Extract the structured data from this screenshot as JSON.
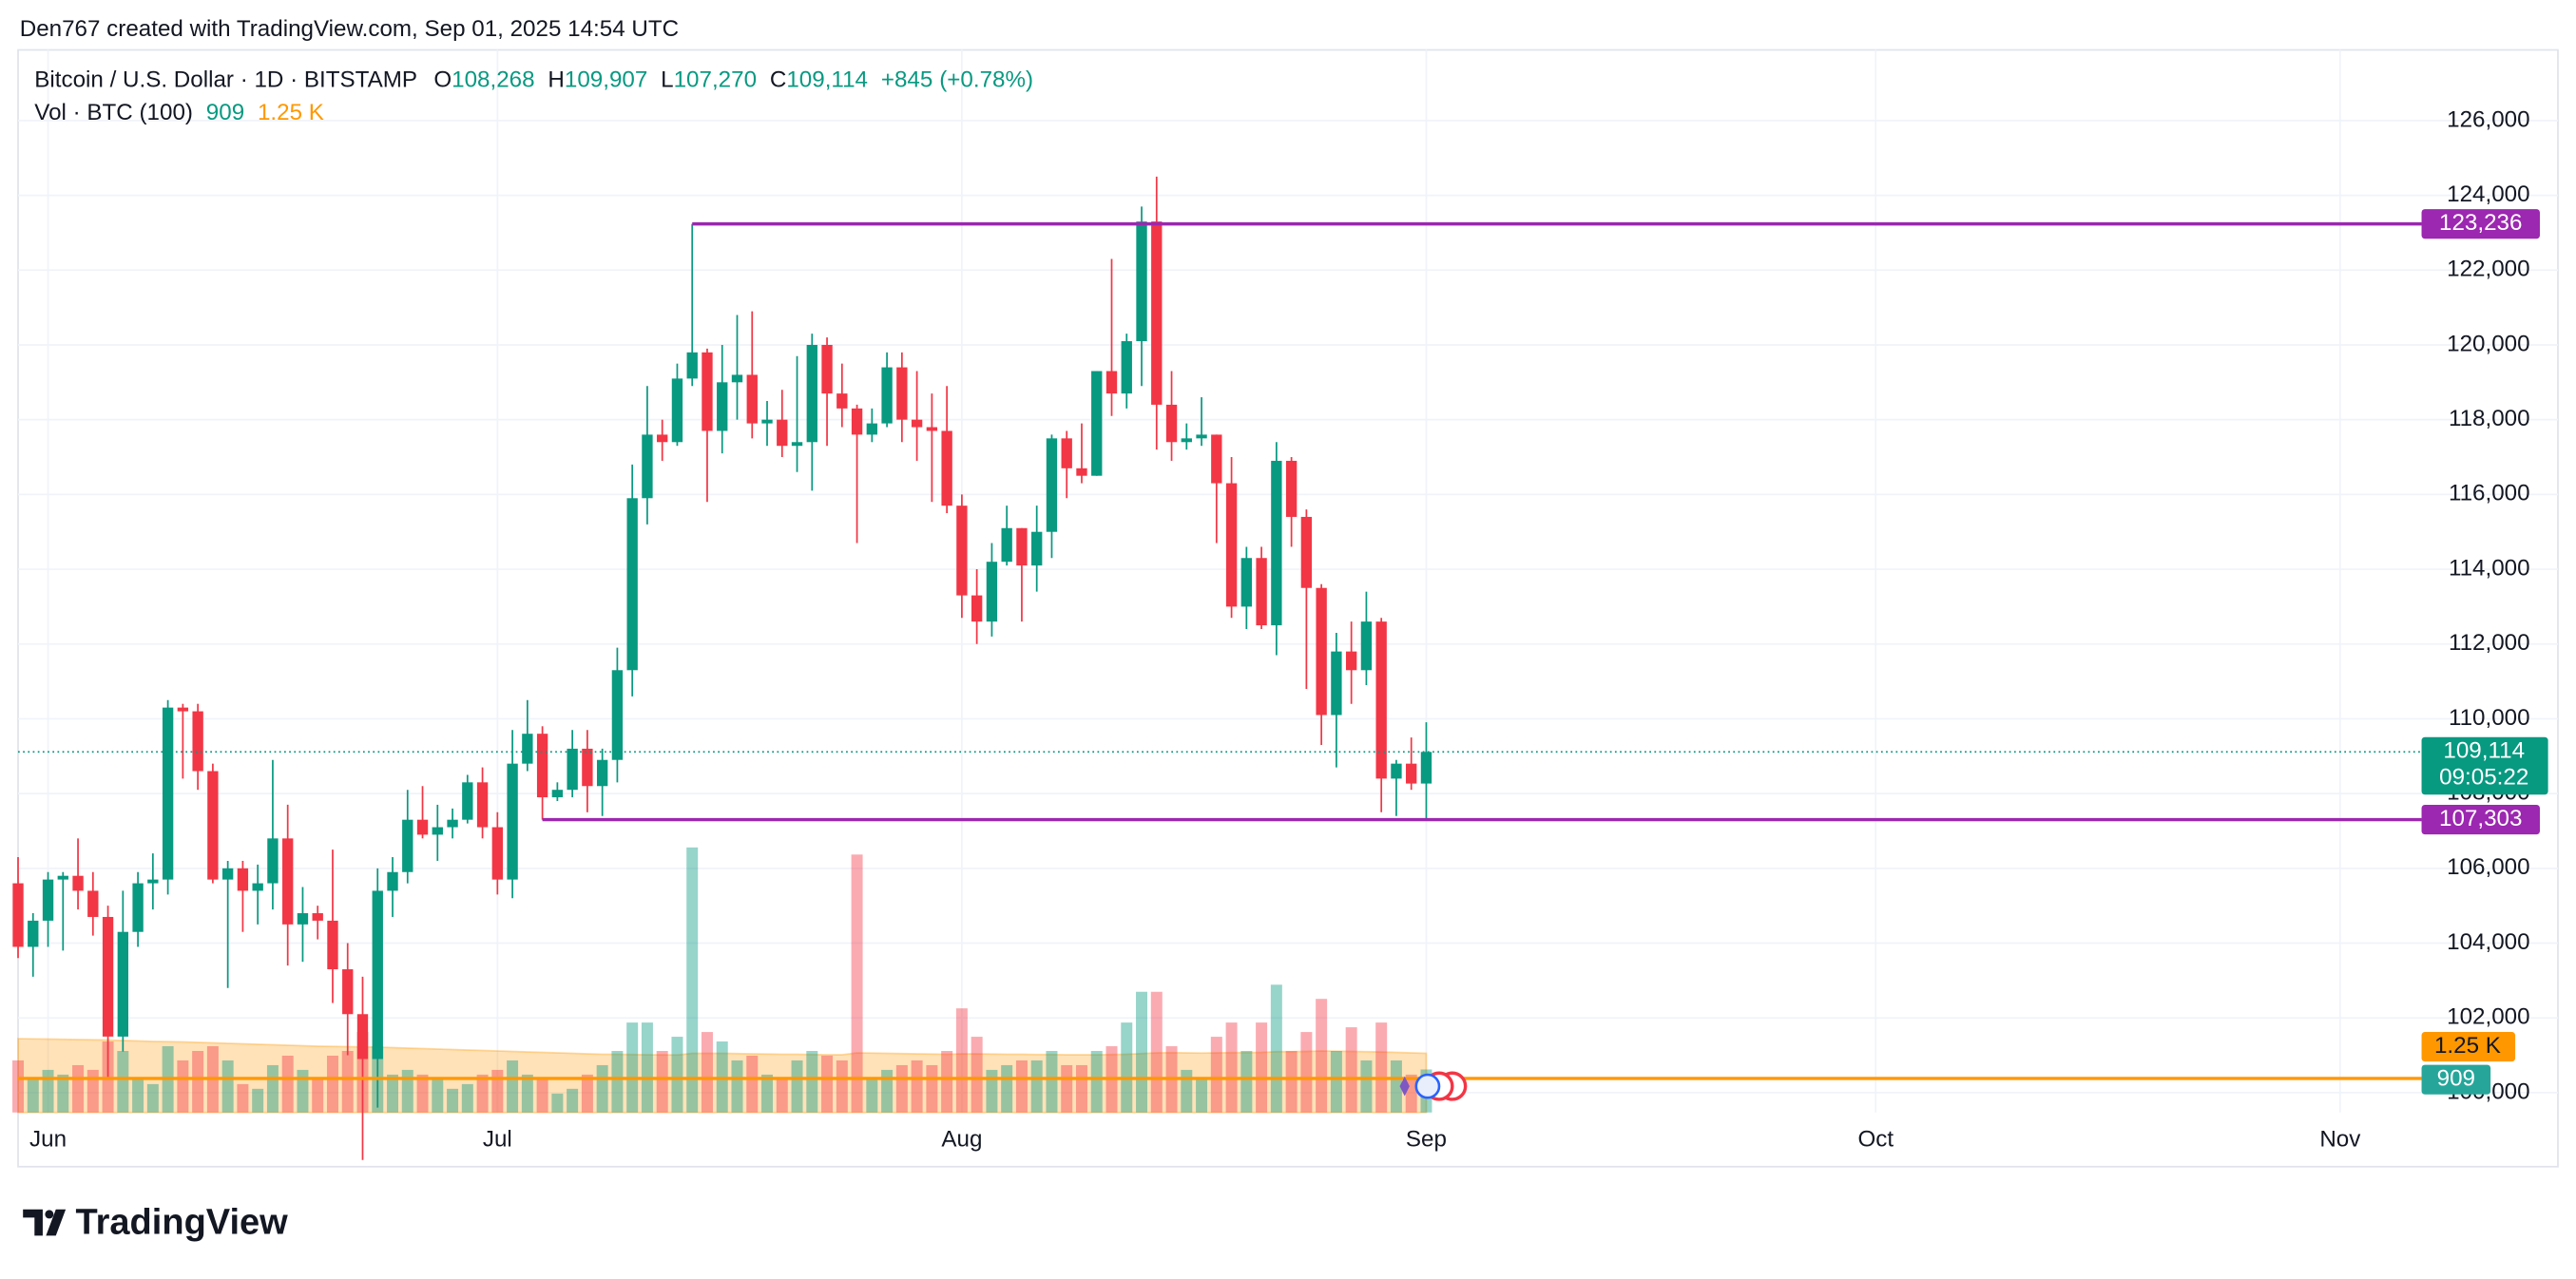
{
  "header": {
    "credit": "Den767 created with TradingView.com, Sep 01, 2025 14:54 UTC"
  },
  "legend": {
    "symbol": "Bitcoin / U.S. Dollar · 1D · BITSTAMP",
    "ohlc": [
      {
        "key": "O",
        "value": "108,268"
      },
      {
        "key": "H",
        "value": "109,907"
      },
      {
        "key": "L",
        "value": "107,270"
      },
      {
        "key": "C",
        "value": "109,114"
      }
    ],
    "change": "+845",
    "change_pct": "(+0.78%)",
    "volume_name": "Vol · BTC (100)",
    "volume_value": "909",
    "volume_ma_value": "1.25 K"
  },
  "footer": {
    "brand": "TradingView"
  },
  "chart_data": {
    "type": "candlestick",
    "up_color": "#089981",
    "down_color": "#f23645",
    "grid": true,
    "open": [
      105600,
      103900,
      104600,
      105700,
      105800,
      105400,
      104700,
      101500,
      104300,
      105600,
      105700,
      110300,
      110200,
      108600,
      105700,
      106000,
      105400,
      105600,
      106800,
      104500,
      104800,
      104600,
      103300,
      102100,
      100900,
      105400,
      105900,
      107300,
      106900,
      107100,
      107300,
      108300,
      107100,
      105700,
      108800,
      109600,
      107900,
      108100,
      109200,
      108200,
      108900,
      111300,
      115900,
      117600,
      117400,
      119100,
      119800,
      117700,
      119000,
      119200,
      117900,
      118000,
      117300,
      117400,
      120000,
      118700,
      118300,
      117600,
      117900,
      119400,
      118000,
      117800,
      117700,
      115700,
      113300,
      112600,
      114200,
      115100,
      114100,
      115000,
      117500,
      116700,
      116500,
      119300,
      118700,
      120100,
      123300,
      118400,
      117400,
      117500,
      117600,
      116300,
      113000,
      114300,
      112500,
      116900,
      115400,
      113500,
      110100,
      111800,
      111300,
      112600,
      108400,
      108800,
      108268
    ],
    "high": [
      106300,
      104800,
      105900,
      105900,
      106800,
      105900,
      105000,
      105400,
      105900,
      106400,
      110500,
      110400,
      110400,
      108800,
      106200,
      106200,
      106100,
      108900,
      107700,
      105500,
      105000,
      106500,
      104000,
      103100,
      106000,
      106300,
      108100,
      108200,
      107700,
      107600,
      108500,
      108700,
      107500,
      109700,
      110500,
      109800,
      108300,
      109700,
      109700,
      109200,
      111900,
      116800,
      118900,
      118000,
      119500,
      123236,
      119900,
      120000,
      120800,
      120900,
      118500,
      118800,
      119700,
      120300,
      120200,
      119500,
      118400,
      118300,
      119800,
      119800,
      119300,
      118700,
      118900,
      116000,
      114000,
      114700,
      115700,
      115100,
      115700,
      117600,
      117700,
      117900,
      119300,
      122300,
      120300,
      123700,
      124500,
      119300,
      117900,
      118600,
      117600,
      117000,
      114600,
      114600,
      117400,
      117000,
      115600,
      113600,
      112300,
      112600,
      113400,
      112700,
      108900,
      109500,
      109907
    ],
    "low": [
      103600,
      103100,
      103900,
      103800,
      104900,
      104200,
      100400,
      101100,
      103900,
      104900,
      105300,
      108400,
      108100,
      105600,
      102800,
      104300,
      104500,
      104900,
      103400,
      103500,
      104100,
      102400,
      101000,
      98200,
      99600,
      104700,
      105600,
      106800,
      106200,
      106800,
      107200,
      106800,
      105300,
      105200,
      108600,
      107300,
      107800,
      107900,
      107500,
      107400,
      108300,
      110600,
      115200,
      116900,
      117300,
      118900,
      115800,
      117100,
      118000,
      117500,
      117300,
      117000,
      116600,
      116100,
      117300,
      117800,
      114700,
      117400,
      117800,
      117400,
      116900,
      115800,
      115500,
      112700,
      112000,
      112200,
      114100,
      112600,
      113400,
      114300,
      115900,
      116300,
      116500,
      118100,
      118300,
      118900,
      117200,
      116900,
      117200,
      117300,
      114700,
      112700,
      112400,
      112400,
      111700,
      114600,
      110800,
      109300,
      108700,
      110400,
      110900,
      107500,
      107400,
      108100,
      107270
    ],
    "close": [
      103900,
      104600,
      105700,
      105800,
      105400,
      104700,
      101500,
      104300,
      105600,
      105700,
      110300,
      110200,
      108600,
      105700,
      106000,
      105400,
      105600,
      106800,
      104500,
      104800,
      104600,
      103300,
      102100,
      100900,
      105400,
      105900,
      107300,
      106900,
      107100,
      107300,
      108300,
      107100,
      105700,
      108800,
      109600,
      107900,
      108100,
      109200,
      108200,
      108900,
      111300,
      115900,
      117600,
      117400,
      119100,
      119800,
      117700,
      119000,
      119200,
      117900,
      118000,
      117300,
      117400,
      120000,
      118700,
      118300,
      117600,
      117900,
      119400,
      118000,
      117800,
      117700,
      115700,
      113300,
      112600,
      114200,
      115100,
      114100,
      115000,
      117500,
      116700,
      116500,
      119300,
      118700,
      120100,
      123300,
      118400,
      117400,
      117500,
      117600,
      116300,
      113000,
      114300,
      112500,
      116900,
      115400,
      113500,
      110100,
      111800,
      111300,
      112600,
      108400,
      108800,
      108268,
      109114
    ],
    "volume": [
      1100,
      700,
      900,
      800,
      1000,
      900,
      1500,
      1300,
      700,
      600,
      1400,
      1100,
      1300,
      1400,
      1100,
      600,
      500,
      1000,
      1200,
      900,
      700,
      1200,
      1300,
      1700,
      1400,
      800,
      900,
      800,
      700,
      500,
      600,
      800,
      900,
      1100,
      800,
      700,
      400,
      500,
      800,
      1000,
      1300,
      1900,
      1900,
      1300,
      1600,
      5600,
      1700,
      1500,
      1100,
      1200,
      800,
      700,
      1100,
      1300,
      1200,
      1100,
      5450,
      700,
      900,
      1000,
      1100,
      1000,
      1300,
      2200,
      1600,
      900,
      1000,
      1100,
      1100,
      1300,
      1000,
      1000,
      1300,
      1400,
      1900,
      2550,
      2550,
      1400,
      900,
      700,
      1600,
      1900,
      1300,
      1900,
      2700,
      1300,
      1700,
      2400,
      1300,
      1800,
      1100,
      1900,
      1100,
      800,
      909
    ],
    "volume_ma": [
      1560,
      1555,
      1550,
      1545,
      1540,
      1535,
      1530,
      1520,
      1510,
      1500,
      1495,
      1490,
      1480,
      1470,
      1460,
      1450,
      1440,
      1430,
      1420,
      1410,
      1400,
      1395,
      1390,
      1385,
      1380,
      1370,
      1360,
      1350,
      1340,
      1330,
      1320,
      1310,
      1300,
      1290,
      1280,
      1270,
      1260,
      1250,
      1240,
      1230,
      1230,
      1225,
      1220,
      1220,
      1215,
      1250,
      1250,
      1250,
      1245,
      1240,
      1235,
      1230,
      1230,
      1225,
      1220,
      1220,
      1260,
      1255,
      1250,
      1245,
      1240,
      1235,
      1230,
      1240,
      1240,
      1235,
      1230,
      1230,
      1225,
      1225,
      1220,
      1220,
      1220,
      1225,
      1230,
      1245,
      1260,
      1265,
      1260,
      1255,
      1260,
      1265,
      1265,
      1270,
      1285,
      1285,
      1290,
      1300,
      1295,
      1290,
      1285,
      1280,
      1270,
      1260,
      1250
    ],
    "volume_ma_color": "#ff9800",
    "xlim": [
      0,
      160
    ],
    "xticks": [
      {
        "value": 2,
        "label": "Jun"
      },
      {
        "value": 32,
        "label": "Jul"
      },
      {
        "value": 63,
        "label": "Aug"
      },
      {
        "value": 94,
        "label": "Sep"
      },
      {
        "value": 124,
        "label": "Oct"
      },
      {
        "value": 155,
        "label": "Nov"
      }
    ],
    "ylim": [
      99470,
      127890
    ],
    "volume_lim": [
      0,
      22450
    ],
    "yticks": [
      {
        "value": 100000,
        "label": "100,000"
      },
      {
        "value": 102000,
        "label": "102,000"
      },
      {
        "value": 104000,
        "label": "104,000"
      },
      {
        "value": 106000,
        "label": "106,000"
      },
      {
        "value": 108000,
        "label": "108,000"
      },
      {
        "value": 110000,
        "label": "110,000"
      },
      {
        "value": 112000,
        "label": "112,000"
      },
      {
        "value": 114000,
        "label": "114,000"
      },
      {
        "value": 116000,
        "label": "116,000"
      },
      {
        "value": 118000,
        "label": "118,000"
      },
      {
        "value": 120000,
        "label": "120,000"
      },
      {
        "value": 122000,
        "label": "122,000"
      },
      {
        "value": 124000,
        "label": "124,000"
      },
      {
        "value": 126000,
        "label": "126,000"
      }
    ],
    "hlines": [
      {
        "value": 123236,
        "label": "123,236",
        "start": 45,
        "color": "#9c27b0"
      },
      {
        "value": 107303,
        "label": "107,303",
        "start": 35,
        "color": "#9c27b0"
      },
      {
        "value": 100380,
        "start": 0,
        "color": "#ff9800"
      }
    ],
    "last_price": {
      "label": "109,114",
      "countdown": "09:05:22"
    }
  }
}
